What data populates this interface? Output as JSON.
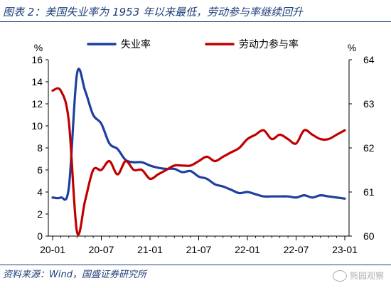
{
  "title": "图表 2：美国失业率为 1953 年以来最低，劳动参与率继续回升",
  "source": "资料来源：Wind，国盛证券研究所",
  "watermark": "熊园观察",
  "chart_data": {
    "type": "line",
    "left_axis_unit": "%",
    "right_axis_unit": "%",
    "left_ylim": [
      0,
      16
    ],
    "left_yticks": [
      0,
      2,
      4,
      6,
      8,
      10,
      12,
      14,
      16
    ],
    "right_ylim": [
      60,
      64
    ],
    "right_yticks": [
      60,
      61,
      62,
      63,
      64
    ],
    "x_tick_labels": [
      "20-01",
      "20-07",
      "21-01",
      "21-07",
      "22-01",
      "22-07",
      "23-01"
    ],
    "x_tick_index": [
      0,
      6,
      12,
      18,
      24,
      30,
      36
    ],
    "legend_position": "top-center",
    "grid": false,
    "x": [
      "20-01",
      "20-02",
      "20-03",
      "20-04",
      "20-05",
      "20-06",
      "20-07",
      "20-08",
      "20-09",
      "20-10",
      "20-11",
      "20-12",
      "21-01",
      "21-02",
      "21-03",
      "21-04",
      "21-05",
      "21-06",
      "21-07",
      "21-08",
      "21-09",
      "21-10",
      "21-11",
      "21-12",
      "22-01",
      "22-02",
      "22-03",
      "22-04",
      "22-05",
      "22-06",
      "22-07",
      "22-08",
      "22-09",
      "22-10",
      "22-11",
      "22-12",
      "23-01"
    ],
    "series": [
      {
        "name": "失业率",
        "axis": "left",
        "color": "#1f3fa0",
        "values": [
          3.5,
          3.5,
          4.4,
          14.7,
          13.2,
          11.0,
          10.2,
          8.4,
          7.9,
          6.9,
          6.7,
          6.7,
          6.4,
          6.2,
          6.1,
          6.1,
          5.8,
          5.9,
          5.4,
          5.2,
          4.7,
          4.5,
          4.2,
          3.9,
          4.0,
          3.8,
          3.6,
          3.6,
          3.6,
          3.6,
          3.5,
          3.7,
          3.5,
          3.7,
          3.6,
          3.5,
          3.4
        ]
      },
      {
        "name": "劳动力参与率",
        "axis": "right",
        "color": "#c00000",
        "values": [
          63.3,
          63.3,
          62.6,
          60.1,
          60.8,
          61.5,
          61.5,
          61.7,
          61.4,
          61.7,
          61.5,
          61.5,
          61.3,
          61.4,
          61.5,
          61.6,
          61.6,
          61.6,
          61.7,
          61.8,
          61.7,
          61.8,
          61.9,
          62.0,
          62.2,
          62.3,
          62.4,
          62.2,
          62.3,
          62.2,
          62.1,
          62.4,
          62.3,
          62.2,
          62.2,
          62.3,
          62.4
        ]
      }
    ]
  }
}
